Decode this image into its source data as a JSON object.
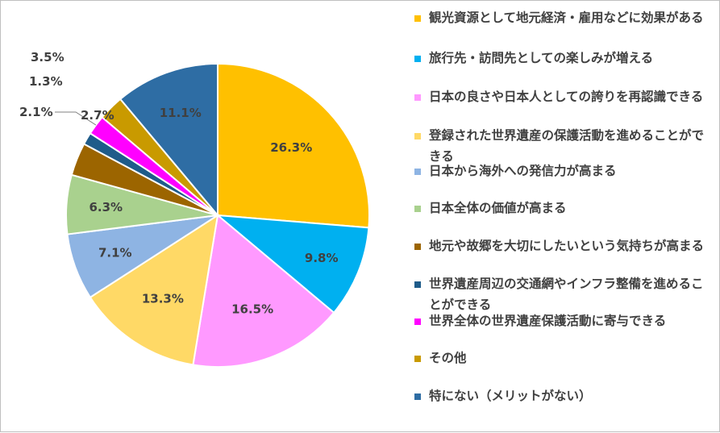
{
  "chart_data": {
    "type": "pie",
    "slices": [
      {
        "label": "観光資源として地元経済・雇用などに効果がある",
        "value": 26.3,
        "display": "26.3%",
        "color": "#FFC000"
      },
      {
        "label": "旅行先・訪問先としての楽しみが増える",
        "value": 9.8,
        "display": "9.8%",
        "color": "#00B0F0"
      },
      {
        "label": "日本の良さや日本人としての誇りを再認識できる",
        "value": 16.5,
        "display": "16.5%",
        "color": "#FF99FF"
      },
      {
        "label": "登録された世界遺産の保護活動を進めることができる",
        "value": 13.3,
        "display": "13.3%",
        "color": "#FFD966"
      },
      {
        "label": "日本から海外への発信力が高まる",
        "value": 7.1,
        "display": "7.1%",
        "color": "#8EB4E3"
      },
      {
        "label": "日本全体の価値が高まる",
        "value": 6.3,
        "display": "6.3%",
        "color": "#A9D18E"
      },
      {
        "label": "地元や故郷を大切にしたいという気持ちが高まる",
        "value": 3.5,
        "display": "3.5%",
        "color": "#9C6500"
      },
      {
        "label": "世界遺産周辺の交通網やインフラ整備を進めることができる",
        "value": 1.3,
        "display": "1.3%",
        "color": "#1F5C8A"
      },
      {
        "label": "世界全体の世界遺産保護活動に寄与できる",
        "value": 2.1,
        "display": "2.1%",
        "color": "#FF00FF"
      },
      {
        "label": "その他",
        "value": 2.7,
        "display": "2.7%",
        "color": "#C99A00"
      },
      {
        "label": "特にない（メリットがない）",
        "value": 11.1,
        "display": "11.1%",
        "color": "#2E6DA4"
      }
    ],
    "legend_position": "right"
  }
}
